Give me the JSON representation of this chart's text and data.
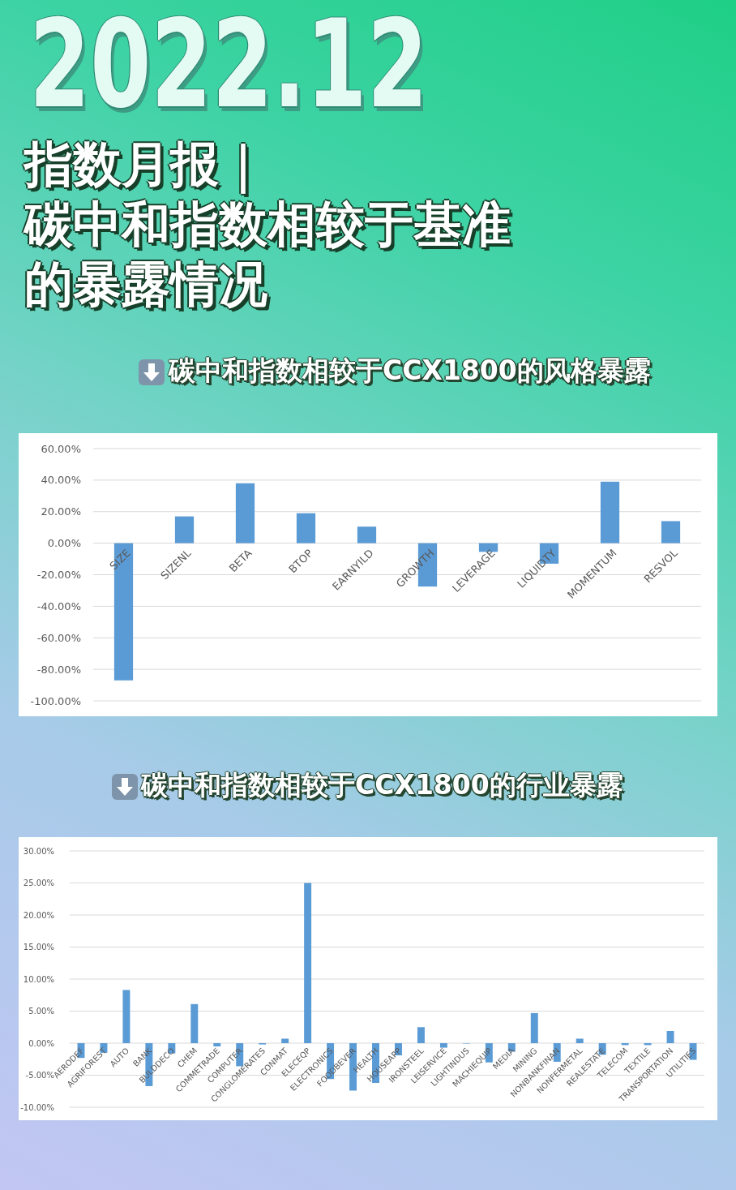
{
  "chart_data": [
    {
      "type": "bar",
      "title": "碳中和指数相较于CCX1800的风格暴露",
      "annotations": [
        "2022.12",
        "指数月报｜",
        "碳中和指数相较于基准的暴露情况"
      ],
      "categories": [
        "SIZE",
        "SIZENL",
        "BETA",
        "BTOP",
        "EARNYILD",
        "GROWTH",
        "LEVERAGE",
        "LIQUIDTY",
        "MOMENTUM",
        "RESVOL"
      ],
      "values": [
        -87,
        17,
        38,
        19,
        10.5,
        -27.5,
        -5.5,
        -13,
        39,
        14
      ],
      "color": "#5b9bd5",
      "ylim": [
        -100,
        60
      ],
      "yticks": [
        {
          "value": -100,
          "label": "-100.00%"
        },
        {
          "value": -80,
          "label": "-80.00%"
        },
        {
          "value": -60,
          "label": "-60.00%"
        },
        {
          "value": -40,
          "label": "-40.00%"
        },
        {
          "value": -20,
          "label": "-20.00%"
        },
        {
          "value": 0,
          "label": "0.00%"
        },
        {
          "value": 20,
          "label": "20.00%"
        },
        {
          "value": 40,
          "label": "40.00%"
        },
        {
          "value": 60,
          "label": "60.00%"
        }
      ],
      "grid": "y"
    },
    {
      "type": "bar",
      "title": "碳中和指数相较于CCX1800的行业暴露",
      "categories": [
        "AERODEF",
        "AGRIFOREST",
        "AUTO",
        "BANK",
        "BULDDECO",
        "CHEM",
        "COMMETRADE",
        "COMPUTER",
        "CONGLOMERATES",
        "CONMAT",
        "ELECEQP",
        "ELECTRONICS",
        "FOODBEVER",
        "HEALTH",
        "HOUSEAPP",
        "IRONSTEEL",
        "LEISERVICE",
        "LIGHTINDUS",
        "MACHIEQUIP",
        "MEDIA",
        "MINING",
        "NONBANKFINAN",
        "NONFERMETAL",
        "REALESTATE",
        "TELECOM",
        "TEXTILE",
        "TRANSPORTATION",
        "UTILITIES"
      ],
      "values": [
        -2.3,
        -1.5,
        8.3,
        -6.7,
        -1.6,
        6.1,
        -0.5,
        -3.6,
        -0.2,
        0.7,
        25,
        -5.6,
        -7.4,
        -6.2,
        -1.9,
        2.5,
        -0.7,
        0,
        -3.0,
        -1.3,
        4.7,
        -2.9,
        0.7,
        -1.8,
        -0.3,
        -0.3,
        1.9,
        -2.6
      ],
      "color": "#5b9bd5",
      "ylim": [
        -10,
        30
      ],
      "yticks": [
        {
          "value": -10,
          "label": "-10.00%"
        },
        {
          "value": -5,
          "label": "-5.00%"
        },
        {
          "value": 0,
          "label": "0.00%"
        },
        {
          "value": 5,
          "label": "5.00%"
        },
        {
          "value": 10,
          "label": "10.00%"
        },
        {
          "value": 15,
          "label": "15.00%"
        },
        {
          "value": 20,
          "label": "20.00%"
        },
        {
          "value": 25,
          "label": "25.00%"
        },
        {
          "value": 30,
          "label": "30.00%"
        }
      ],
      "grid": "y"
    }
  ]
}
